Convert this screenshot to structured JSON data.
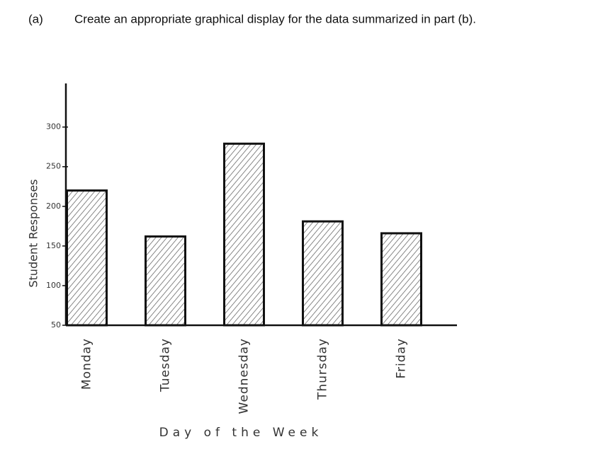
{
  "header": {
    "part": "(a)",
    "question": "Create an appropriate graphical display for the data summarized in part (b)."
  },
  "chart_data": {
    "type": "bar",
    "x_label": "Day of the Week",
    "y_label": "Student Responses",
    "categories": [
      "Monday",
      "Tuesday",
      "Wednesday",
      "Thursday",
      "Friday"
    ],
    "values": [
      220,
      162,
      279,
      181,
      166
    ],
    "color": "#555555",
    "ylim": [
      50,
      355
    ],
    "yticks": [
      50,
      100,
      150,
      200,
      250,
      300
    ],
    "grid": false
  }
}
